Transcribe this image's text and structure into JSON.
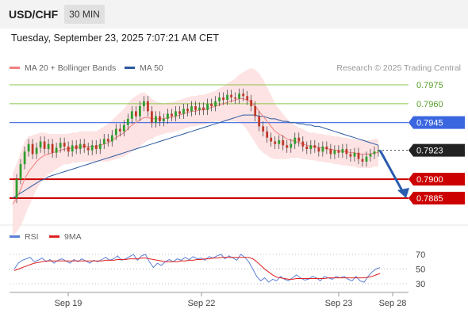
{
  "header": {
    "symbol": "USD/CHF",
    "timeframe": "30 MIN",
    "timestamp": "Tuesday, September 23, 2025 7:07:21 AM CET"
  },
  "legend_main": [
    {
      "label": "MA 20 + Bollinger Bands",
      "color": "#f08080"
    },
    {
      "label": "MA 50",
      "color": "#2c5aa0"
    }
  ],
  "legend_rsi": [
    {
      "label": "RSI",
      "color": "#5b7fd6"
    },
    {
      "label": "9MA",
      "color": "#e02020"
    }
  ],
  "watermark": "Research © 2025 Trading Central",
  "colors": {
    "candle_up": "#2e9e2e",
    "candle_down": "#c0392b",
    "resistance": "#8bc34a",
    "pivot": "#3a66e0",
    "support": "#cc0000",
    "current": "#222222",
    "band": "#fde0e0",
    "ma20": "#f08080",
    "ma50": "#2c5aa0",
    "rsi": "#5b7fd6",
    "rsi_ma": "#e02020"
  },
  "chart_data": [
    {
      "type": "candlestick",
      "title": "USD/CHF 30 MIN",
      "x_ticks": [
        "Sep 19",
        "Sep 22",
        "Sep 23",
        "Sep 28"
      ],
      "ylim": [
        0.7875,
        0.7985
      ],
      "levels": [
        {
          "value": 0.7975,
          "label": "0.7975",
          "kind": "resistance"
        },
        {
          "value": 0.796,
          "label": "0.7960",
          "kind": "resistance"
        },
        {
          "value": 0.7945,
          "label": "0.7945",
          "kind": "pivot"
        },
        {
          "value": 0.7923,
          "label": "0.7923",
          "kind": "current"
        },
        {
          "value": 0.79,
          "label": "0.7900",
          "kind": "support"
        },
        {
          "value": 0.7885,
          "label": "0.7885",
          "kind": "support"
        }
      ],
      "close_path": [
        0.7885,
        0.79,
        0.7912,
        0.7922,
        0.7928,
        0.792,
        0.7925,
        0.793,
        0.7924,
        0.7928,
        0.7921,
        0.7925,
        0.7929,
        0.7926,
        0.7922,
        0.7927,
        0.7924,
        0.7928,
        0.7925,
        0.7923,
        0.7927,
        0.7924,
        0.7928,
        0.7932,
        0.793,
        0.7935,
        0.794,
        0.7938,
        0.7943,
        0.7948,
        0.7954,
        0.795,
        0.7958,
        0.7962,
        0.7954,
        0.7945,
        0.795,
        0.7946,
        0.7948,
        0.7952,
        0.795,
        0.7954,
        0.7952,
        0.7956,
        0.7954,
        0.7958,
        0.7955,
        0.7957,
        0.7955,
        0.796,
        0.7958,
        0.7962,
        0.7965,
        0.7963,
        0.7967,
        0.7965,
        0.7964,
        0.7968,
        0.7966,
        0.7963,
        0.7958,
        0.795,
        0.7942,
        0.7938,
        0.7933,
        0.793,
        0.7928,
        0.7931,
        0.7927,
        0.7925,
        0.7928,
        0.7933,
        0.793,
        0.7926,
        0.7924,
        0.7927,
        0.7925,
        0.7922,
        0.7926,
        0.7924,
        0.792,
        0.7923,
        0.7921,
        0.7924,
        0.792,
        0.7918,
        0.7921,
        0.7916,
        0.7914,
        0.7918,
        0.792,
        0.7922,
        0.7923
      ],
      "ma20": [
        0.788,
        0.7885,
        0.7892,
        0.79,
        0.7906,
        0.791,
        0.7914,
        0.7917,
        0.7919,
        0.792,
        0.7921,
        0.7922,
        0.7923,
        0.7924,
        0.7924,
        0.7925,
        0.7925,
        0.7926,
        0.7926,
        0.7926,
        0.7926,
        0.7926,
        0.7927,
        0.7928,
        0.7929,
        0.7931,
        0.7933,
        0.7935,
        0.7937,
        0.794,
        0.7943,
        0.7945,
        0.7947,
        0.7949,
        0.7949,
        0.7948,
        0.7948,
        0.7948,
        0.7948,
        0.7949,
        0.7949,
        0.795,
        0.7951,
        0.7952,
        0.7953,
        0.7954,
        0.7954,
        0.7955,
        0.7955,
        0.7956,
        0.7957,
        0.7958,
        0.7959,
        0.796,
        0.7961,
        0.7962,
        0.7963,
        0.7964,
        0.7964,
        0.7963,
        0.7961,
        0.7958,
        0.7954,
        0.795,
        0.7946,
        0.7942,
        0.7938,
        0.7936,
        0.7934,
        0.7932,
        0.7931,
        0.793,
        0.7929,
        0.7928,
        0.7927,
        0.7926,
        0.7926,
        0.7925,
        0.7925,
        0.7924,
        0.7924,
        0.7923,
        0.7923,
        0.7922,
        0.7922,
        0.7921,
        0.7921,
        0.792,
        0.792,
        0.792,
        0.792,
        0.7921,
        0.7921
      ],
      "ma50": [
        0.7885,
        0.7887,
        0.7889,
        0.7891,
        0.7893,
        0.7895,
        0.7897,
        0.7899,
        0.79,
        0.7902,
        0.7903,
        0.7904,
        0.7905,
        0.7906,
        0.7907,
        0.7908,
        0.7909,
        0.791,
        0.7911,
        0.7912,
        0.7913,
        0.7914,
        0.7915,
        0.7916,
        0.7917,
        0.7918,
        0.7919,
        0.792,
        0.7921,
        0.7922,
        0.7923,
        0.7924,
        0.7925,
        0.7926,
        0.7927,
        0.7928,
        0.7929,
        0.793,
        0.7931,
        0.7932,
        0.7933,
        0.7934,
        0.7935,
        0.7936,
        0.7937,
        0.7938,
        0.7939,
        0.794,
        0.7941,
        0.7942,
        0.7943,
        0.7944,
        0.7945,
        0.7946,
        0.7947,
        0.7948,
        0.7949,
        0.795,
        0.7951,
        0.7951,
        0.7951,
        0.7951,
        0.795,
        0.795,
        0.7949,
        0.7948,
        0.7948,
        0.7947,
        0.7946,
        0.7946,
        0.7945,
        0.7945,
        0.7944,
        0.7944,
        0.7943,
        0.7943,
        0.7942,
        0.7942,
        0.7941,
        0.794,
        0.7939,
        0.7938,
        0.7937,
        0.7936,
        0.7935,
        0.7934,
        0.7933,
        0.7932,
        0.7931,
        0.793,
        0.7929,
        0.7928,
        0.7927
      ],
      "band_width": [
        0.0025,
        0.0027,
        0.0029,
        0.003,
        0.0028,
        0.0025,
        0.0022,
        0.002,
        0.0018,
        0.0016,
        0.0015,
        0.0014,
        0.0013,
        0.0012,
        0.0012,
        0.0012,
        0.0012,
        0.0012,
        0.0012,
        0.0012,
        0.0012,
        0.0012,
        0.0013,
        0.0014,
        0.0015,
        0.0016,
        0.0017,
        0.0018,
        0.0019,
        0.002,
        0.0021,
        0.0021,
        0.0021,
        0.002,
        0.0018,
        0.0016,
        0.0014,
        0.0013,
        0.0012,
        0.0012,
        0.0012,
        0.0012,
        0.0012,
        0.0012,
        0.0012,
        0.0012,
        0.0012,
        0.0012,
        0.0012,
        0.0012,
        0.0012,
        0.0012,
        0.0013,
        0.0014,
        0.0015,
        0.0016,
        0.0017,
        0.0019,
        0.0021,
        0.0024,
        0.0027,
        0.0029,
        0.003,
        0.0029,
        0.0027,
        0.0025,
        0.0022,
        0.002,
        0.0018,
        0.0016,
        0.0014,
        0.0013,
        0.0012,
        0.0012,
        0.0011,
        0.0011,
        0.0011,
        0.0011,
        0.0011,
        0.0011,
        0.0011,
        0.0011,
        0.0011,
        0.0011,
        0.0011,
        0.0011,
        0.0011,
        0.0011,
        0.0011,
        0.0011,
        0.0011,
        0.0011,
        0.0011
      ],
      "forecast": {
        "from": 0.7923,
        "to": 0.7885
      }
    },
    {
      "type": "line",
      "title": "RSI",
      "ylim": [
        25,
        75
      ],
      "y_ticks": [
        70,
        50,
        30
      ],
      "rsi": [
        50,
        58,
        62,
        64,
        66,
        60,
        62,
        65,
        60,
        63,
        58,
        62,
        64,
        61,
        58,
        63,
        60,
        64,
        61,
        58,
        62,
        60,
        63,
        66,
        62,
        64,
        68,
        62,
        64,
        67,
        70,
        62,
        68,
        70,
        60,
        52,
        58,
        55,
        60,
        63,
        60,
        64,
        62,
        66,
        63,
        67,
        64,
        65,
        62,
        67,
        65,
        68,
        70,
        64,
        68,
        65,
        62,
        70,
        66,
        60,
        50,
        40,
        34,
        38,
        32,
        36,
        34,
        40,
        36,
        34,
        38,
        42,
        38,
        35,
        36,
        40,
        38,
        34,
        40,
        38,
        36,
        40,
        38,
        40,
        36,
        34,
        40,
        34,
        32,
        40,
        46,
        50,
        52
      ],
      "ma9": [
        48,
        50,
        52,
        54,
        56,
        58,
        59,
        60,
        61,
        61,
        61,
        61,
        61,
        61,
        61,
        61,
        61,
        61,
        61,
        61,
        61,
        61,
        61,
        62,
        62,
        62,
        63,
        63,
        63,
        64,
        64,
        64,
        65,
        65,
        64,
        63,
        62,
        61,
        60,
        60,
        60,
        60,
        61,
        61,
        62,
        62,
        63,
        63,
        64,
        64,
        65,
        65,
        66,
        66,
        66,
        66,
        66,
        66,
        66,
        66,
        64,
        60,
        55,
        50,
        46,
        42,
        39,
        38,
        37,
        36,
        36,
        37,
        37,
        37,
        37,
        37,
        37,
        37,
        37,
        38,
        38,
        38,
        38,
        38,
        38,
        38,
        38,
        38,
        38,
        39,
        40,
        42,
        44
      ]
    }
  ]
}
